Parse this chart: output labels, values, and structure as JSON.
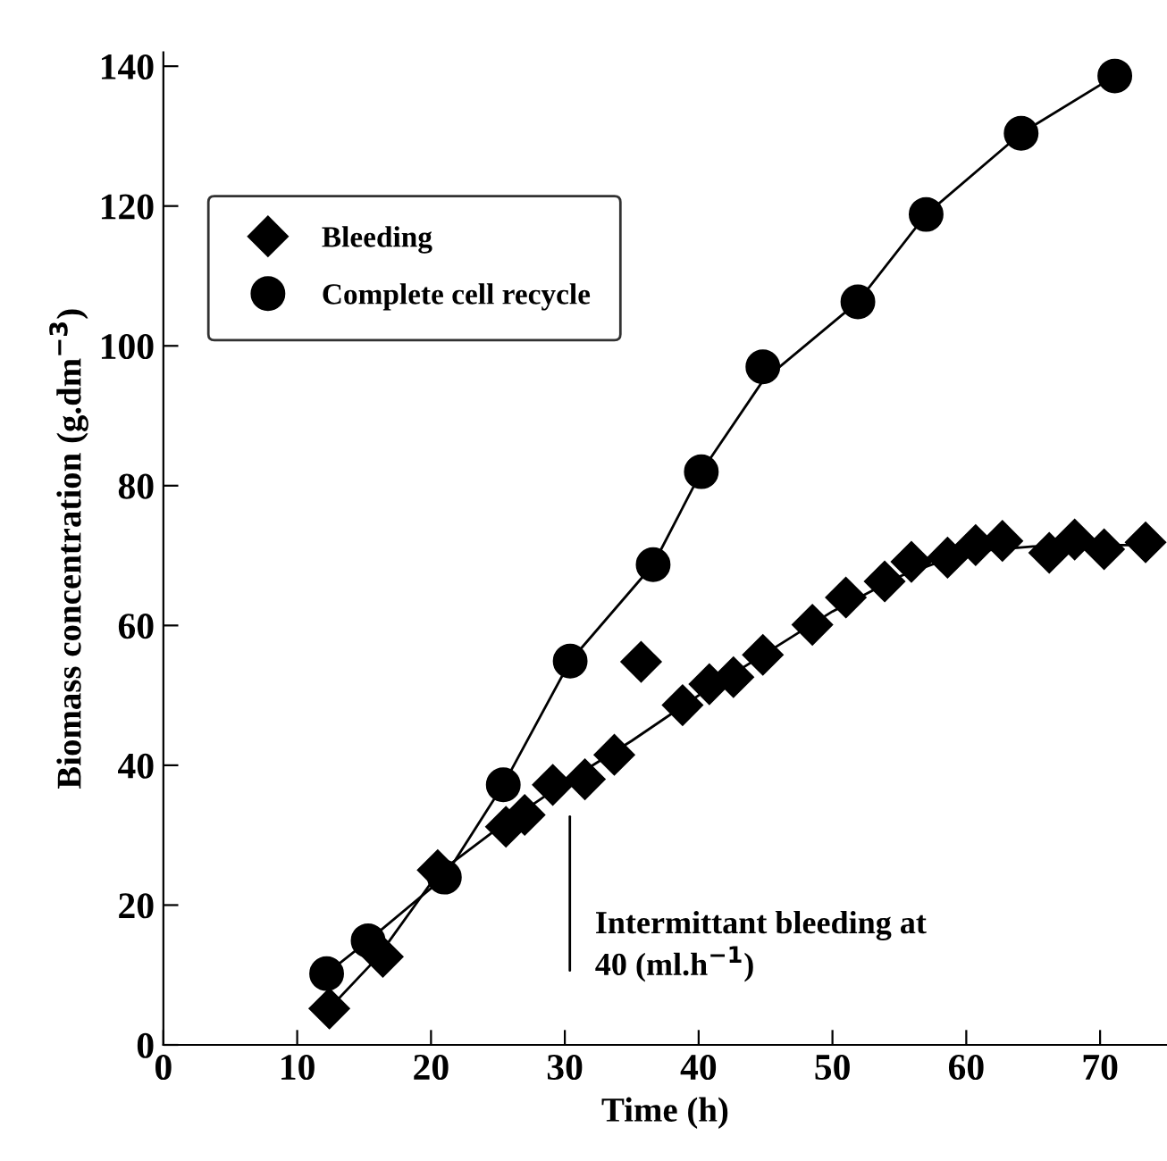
{
  "chart_data": {
    "type": "scatter",
    "xlabel": "Time (h)",
    "ylabel": "Biomass concentration (g.dm$^{−3}$)",
    "xlim": [
      0,
      75
    ],
    "ylim": [
      0,
      142
    ],
    "xticks": [
      0,
      10,
      20,
      30,
      40,
      50,
      60,
      70
    ],
    "yticks": [
      0,
      20,
      40,
      60,
      80,
      100,
      120,
      140
    ],
    "grid": false,
    "legend": "top left",
    "series": [
      {
        "name": "Bleeding",
        "marker": "diamond",
        "color": "#000000",
        "x": [
          12.4,
          16.4,
          20.5,
          25.6,
          27,
          29.1,
          31.5,
          33.7,
          35.7,
          38.8,
          40.8,
          42.6,
          44.8,
          48.5,
          51,
          53.9,
          55.9,
          58.6,
          60.7,
          62.7,
          66.2,
          68.1,
          70.3,
          73.4
        ],
        "values": [
          5.2,
          12.6,
          25,
          31.2,
          32.9,
          37.2,
          38,
          41.5,
          54.8,
          48.6,
          51.6,
          52.6,
          55.8,
          60.1,
          64,
          66.3,
          69.1,
          69.7,
          71.5,
          72.1,
          70.4,
          72.3,
          70.9,
          71.9
        ]
      },
      {
        "name": "Complete cell recycle",
        "marker": "circle",
        "color": "#000000",
        "x": [
          12.2,
          15.3,
          21,
          25.4,
          30.4,
          36.6,
          40.2,
          44.8,
          51.9,
          57,
          64.1,
          71.1
        ],
        "values": [
          10.2,
          14.9,
          24,
          37.2,
          54.9,
          68.7,
          82,
          97,
          106.3,
          118.8,
          130.4,
          138.6
        ]
      },
      {
        "type": "line",
        "marker": "none",
        "line_style": "solid",
        "color": "#000000",
        "x": [
          12.4,
          16,
          20.5,
          25,
          30,
          35,
          40,
          45,
          50,
          55,
          60,
          65,
          70,
          73.4
        ],
        "values": [
          5.2,
          12.5,
          24.5,
          31,
          37.5,
          43.5,
          50,
          56,
          62,
          67,
          70.5,
          71.3,
          71.5,
          71.5
        ]
      },
      {
        "type": "line",
        "marker": "none",
        "line_style": "solid",
        "color": "#000000",
        "x": [
          12.2,
          15.3,
          21,
          25.4,
          30.4,
          36.6,
          40.2,
          44.8,
          51.9,
          57,
          64.1,
          71.1
        ],
        "values": [
          10.2,
          14.9,
          24,
          37.2,
          54.9,
          68.7,
          82,
          95,
          106.3,
          118.8,
          130.4,
          138.6
        ]
      }
    ],
    "annotations": [
      "Intermittant bleeding at\n40 (ml.h$^{−1}$)"
    ]
  }
}
